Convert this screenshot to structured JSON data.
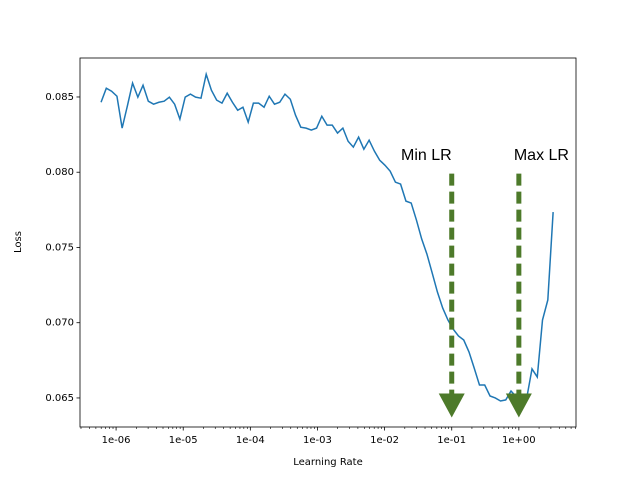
{
  "chart_data": {
    "type": "line",
    "xlabel": "Learning Rate",
    "ylabel": "Loss",
    "xscale": "log",
    "minor_ticks": true,
    "xlim": [
      2.9e-07,
      7.1
    ],
    "ylim": [
      0.06307,
      0.08759
    ],
    "xticks": [
      {
        "value": 1e-06,
        "label": "1e-06"
      },
      {
        "value": 1e-05,
        "label": "1e-05"
      },
      {
        "value": 0.0001,
        "label": "1e-04"
      },
      {
        "value": 0.001,
        "label": "1e-03"
      },
      {
        "value": 0.01,
        "label": "1e-02"
      },
      {
        "value": 0.1,
        "label": "1e-01"
      },
      {
        "value": 1,
        "label": "1e+00"
      }
    ],
    "yticks": [
      0.065,
      {
        "value": 0.07,
        "label": "0.070"
      },
      0.075,
      {
        "value": 0.08,
        "label": "0.080"
      },
      0.085
    ],
    "x": [
      5.97e-07,
      7.15e-07,
      8.57e-07,
      1.03e-06,
      1.23e-06,
      1.47e-06,
      1.76e-06,
      2.11e-06,
      2.52e-06,
      3.02e-06,
      3.62e-06,
      4.34e-06,
      5.2e-06,
      6.22e-06,
      7.45e-06,
      8.92e-06,
      1.07e-05,
      1.28e-05,
      1.53e-05,
      1.84e-05,
      2.2e-05,
      2.63e-05,
      3.15e-05,
      3.78e-05,
      4.52e-05,
      5.41e-05,
      6.48e-05,
      7.76e-05,
      9.29e-05,
      0.000111,
      0.000133,
      0.00016,
      0.000191,
      0.000229,
      0.000274,
      0.000328,
      0.000394,
      0.000471,
      0.000564,
      0.000676,
      0.000809,
      0.000969,
      0.00116,
      0.00139,
      0.00166,
      0.00199,
      0.00239,
      0.00286,
      0.00342,
      0.0041,
      0.00491,
      0.00588,
      0.00705,
      0.00844,
      0.0101,
      0.0121,
      0.0145,
      0.0173,
      0.0208,
      0.0249,
      0.0298,
      0.0357,
      0.0427,
      0.0512,
      0.0612,
      0.0733,
      0.0879,
      0.105,
      0.126,
      0.151,
      0.181,
      0.216,
      0.259,
      0.31,
      0.372,
      0.445,
      0.533,
      0.638,
      0.764,
      0.916,
      1.1,
      1.31,
      1.57,
      1.88,
      2.25,
      2.7,
      3.24
    ],
    "series": [
      {
        "color": "#1f77b4",
        "values": [
          0.08465,
          0.08558,
          0.08538,
          0.08505,
          0.08293,
          0.08439,
          0.08592,
          0.08499,
          0.08578,
          0.08472,
          0.08452,
          0.08465,
          0.08472,
          0.08499,
          0.08452,
          0.08353,
          0.08499,
          0.08519,
          0.08499,
          0.08492,
          0.08651,
          0.08545,
          0.08479,
          0.08459,
          0.08525,
          0.08465,
          0.08412,
          0.08432,
          0.08333,
          0.08459,
          0.08459,
          0.08432,
          0.08505,
          0.08452,
          0.08465,
          0.08519,
          0.08485,
          0.08379,
          0.08299,
          0.08293,
          0.0828,
          0.08293,
          0.08372,
          0.08313,
          0.08313,
          0.0826,
          0.08293,
          0.08206,
          0.08167,
          0.08233,
          0.08153,
          0.08213,
          0.0814,
          0.0808,
          0.08047,
          0.08007,
          0.07934,
          0.07921,
          0.07808,
          0.07795,
          0.07682,
          0.07556,
          0.07456,
          0.0733,
          0.07204,
          0.07098,
          0.07018,
          0.06958,
          0.06912,
          0.06885,
          0.06805,
          0.06699,
          0.06586,
          0.06586,
          0.06513,
          0.065,
          0.0648,
          0.06487,
          0.06546,
          0.06507,
          0.0646,
          0.065,
          0.06693,
          0.06639,
          0.07018,
          0.07151,
          0.07735
        ]
      }
    ],
    "annotations": [
      {
        "text": "Min LR",
        "xy": [
          0.1,
          0.0637
        ],
        "xytext": [
          0.1,
          0.0811
        ],
        "ha": "right",
        "color": "#4d7a2a"
      },
      {
        "text": "Max LR",
        "xy": [
          1,
          0.0637
        ],
        "xytext": [
          1,
          0.0811
        ],
        "ha": "left",
        "color": "#4d7a2a"
      }
    ]
  }
}
